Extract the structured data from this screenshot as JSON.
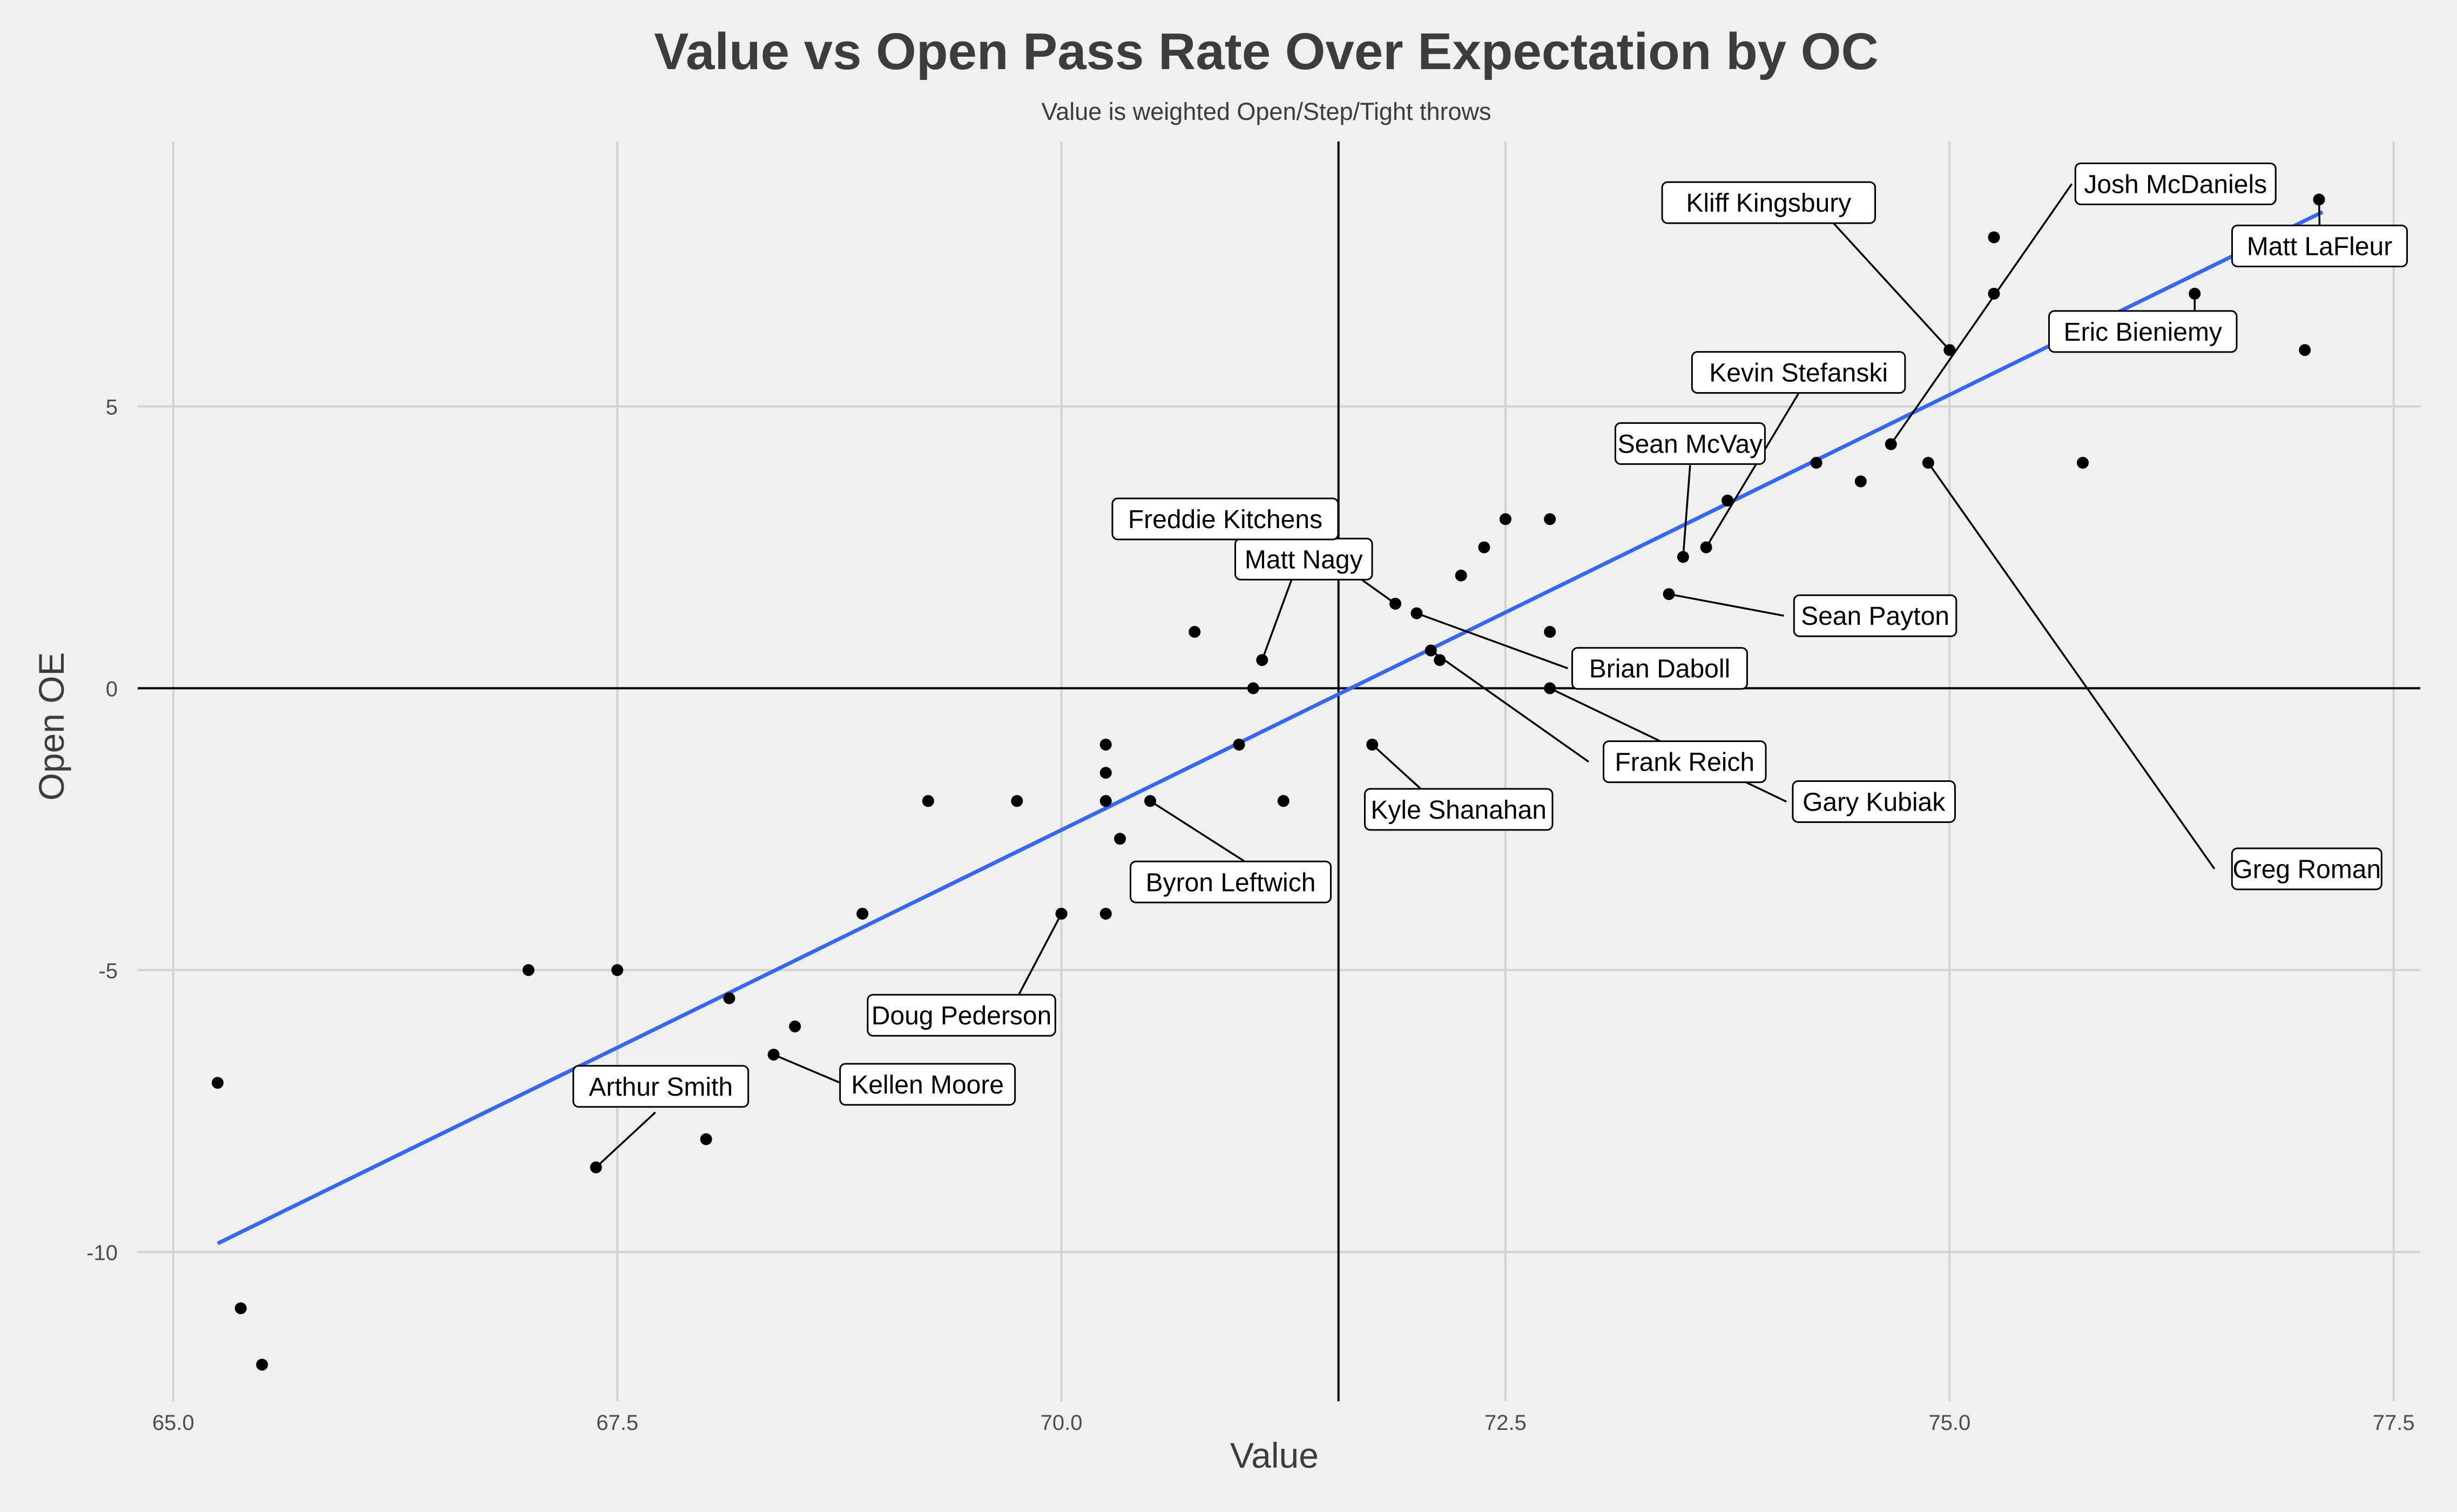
{
  "chart_data": {
    "type": "scatter",
    "title": "Value vs Open Pass Rate Over Expectation by OC",
    "subtitle": "Value is weighted Open/Step/Tight throws",
    "xlabel": "Value",
    "ylabel": "Open OE",
    "xlim": [
      64.8,
      77.65
    ],
    "ylim": [
      -12.65,
      9.7
    ],
    "x_ticks": [
      "65.0",
      "67.5",
      "70.0",
      "72.5",
      "75.0",
      "77.5"
    ],
    "x_tick_values": [
      65,
      67.5,
      70,
      72.5,
      75,
      77.5
    ],
    "y_ticks": [
      "-10",
      "-5",
      "0",
      "5"
    ],
    "y_tick_values": [
      -10,
      -5,
      0,
      5
    ],
    "grid": true,
    "reference_lines": {
      "x": 71.56,
      "y": 0
    },
    "trend_line": {
      "x": [
        65.25,
        77.1
      ],
      "y": [
        -9.85,
        8.45
      ],
      "color": "#3366ff"
    },
    "point_color": "#000000",
    "points": [
      {
        "x": 65.25,
        "y": -7
      },
      {
        "x": 65.38,
        "y": -11
      },
      {
        "x": 65.5,
        "y": -12
      },
      {
        "x": 67.0,
        "y": -5
      },
      {
        "x": 67.5,
        "y": -5
      },
      {
        "x": 67.38,
        "y": -8.5,
        "label": "Arthur Smith"
      },
      {
        "x": 68.0,
        "y": -8
      },
      {
        "x": 68.13,
        "y": -5.5
      },
      {
        "x": 68.38,
        "y": -6.5,
        "label": "Kellen Moore"
      },
      {
        "x": 68.5,
        "y": -6
      },
      {
        "x": 68.88,
        "y": -4
      },
      {
        "x": 69.25,
        "y": -2
      },
      {
        "x": 69.75,
        "y": -2
      },
      {
        "x": 70.0,
        "y": -4,
        "label": "Doug Pederson"
      },
      {
        "x": 70.25,
        "y": -4
      },
      {
        "x": 70.25,
        "y": -2
      },
      {
        "x": 70.25,
        "y": -1.5
      },
      {
        "x": 70.25,
        "y": -1
      },
      {
        "x": 70.33,
        "y": -2.67
      },
      {
        "x": 70.5,
        "y": -2,
        "label": "Byron Leftwich"
      },
      {
        "x": 70.75,
        "y": 1
      },
      {
        "x": 71.0,
        "y": -1
      },
      {
        "x": 71.08,
        "y": 0
      },
      {
        "x": 71.13,
        "y": 0.5,
        "label": "Matt Nagy"
      },
      {
        "x": 71.25,
        "y": -2
      },
      {
        "x": 71.75,
        "y": -1,
        "label": "Kyle Shanahan"
      },
      {
        "x": 71.88,
        "y": 1.5,
        "label": "Freddie Kitchens"
      },
      {
        "x": 72.0,
        "y": 1.33,
        "label": "Brian Daboll"
      },
      {
        "x": 72.08,
        "y": 0.67,
        "label": "Frank Reich"
      },
      {
        "x": 72.13,
        "y": 0.5
      },
      {
        "x": 72.25,
        "y": 2
      },
      {
        "x": 72.38,
        "y": 2.5
      },
      {
        "x": 72.5,
        "y": 3
      },
      {
        "x": 72.75,
        "y": 3
      },
      {
        "x": 72.75,
        "y": 1
      },
      {
        "x": 72.75,
        "y": 0,
        "label": "Gary Kubiak"
      },
      {
        "x": 73.42,
        "y": 1.67,
        "label": "Sean Payton"
      },
      {
        "x": 73.5,
        "y": 2.33,
        "label": "Sean McVay"
      },
      {
        "x": 73.63,
        "y": 2.5,
        "label": "Kevin Stefanski"
      },
      {
        "x": 73.75,
        "y": 3.33
      },
      {
        "x": 74.25,
        "y": 4
      },
      {
        "x": 74.5,
        "y": 3.67
      },
      {
        "x": 74.67,
        "y": 4.33,
        "label": "Josh McDaniels"
      },
      {
        "x": 74.88,
        "y": 4,
        "label": "Greg Roman"
      },
      {
        "x": 75.0,
        "y": 6,
        "label": "Kliff Kingsbury"
      },
      {
        "x": 75.25,
        "y": 7
      },
      {
        "x": 75.25,
        "y": 8
      },
      {
        "x": 75.75,
        "y": 4
      },
      {
        "x": 76.38,
        "y": 7,
        "label": "Eric Bieniemy"
      },
      {
        "x": 77.0,
        "y": 6
      },
      {
        "x": 77.08,
        "y": 8.67,
        "label": "Matt LaFleur"
      }
    ]
  }
}
